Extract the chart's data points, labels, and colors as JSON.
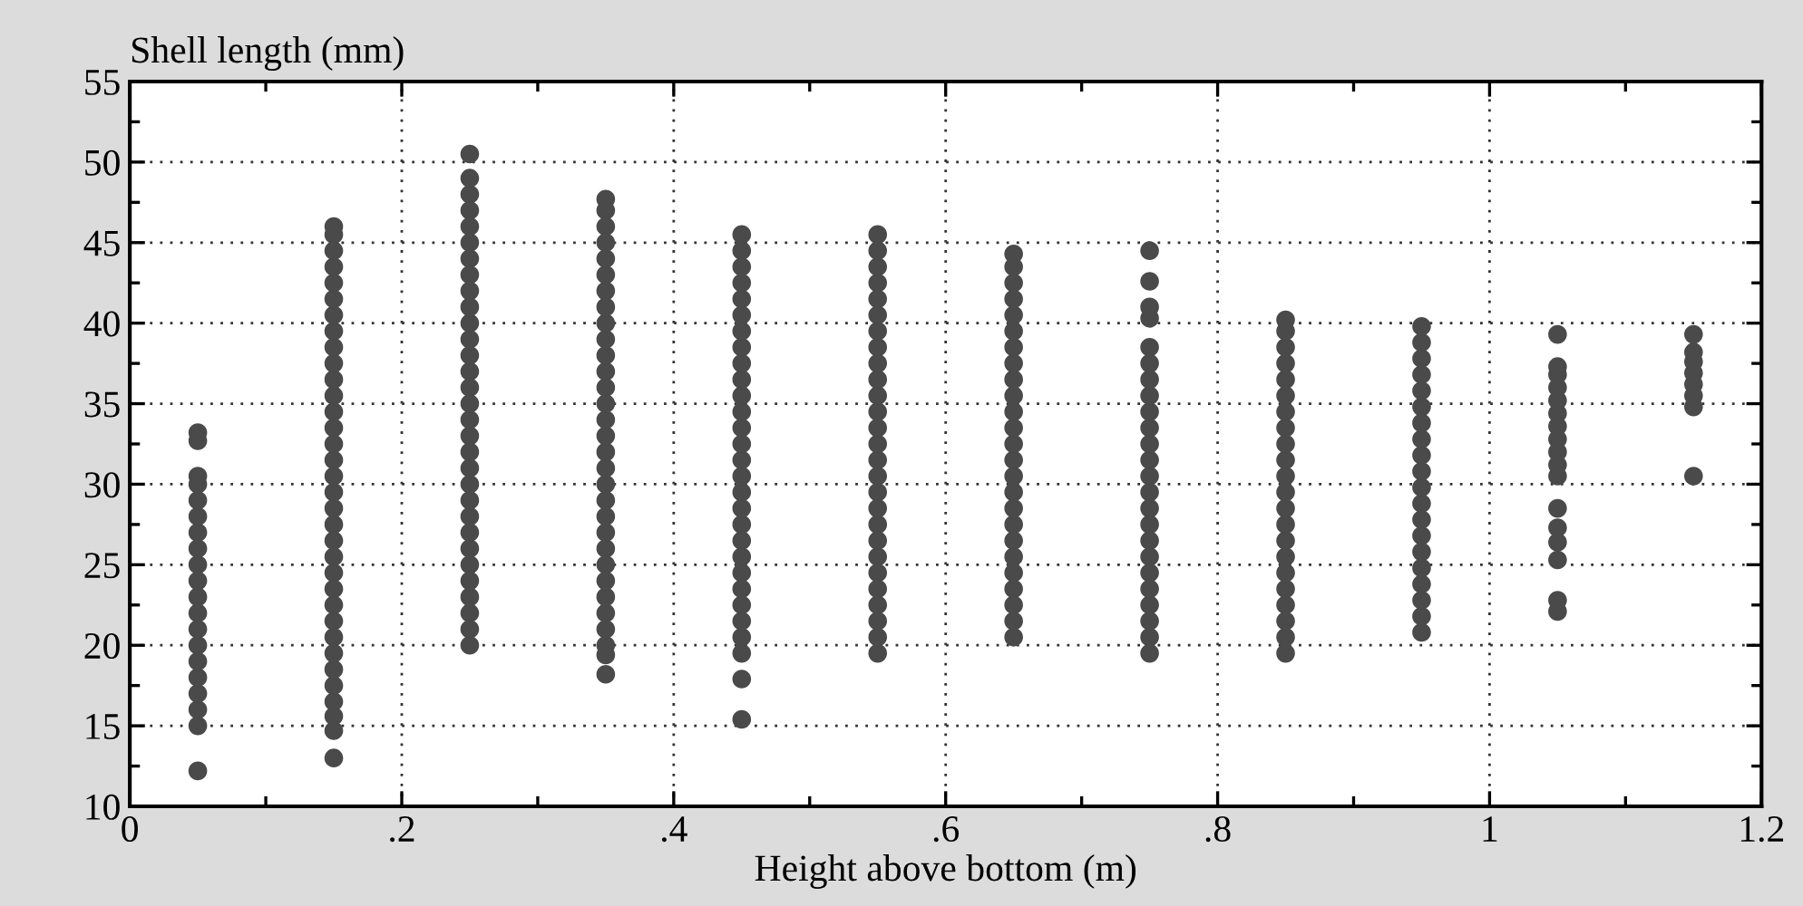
{
  "chart_data": {
    "type": "scatter",
    "xlabel": "Height above bottom (m)",
    "ylabel": "Shell length (mm)",
    "xlim": [
      0,
      1.2
    ],
    "xticks": [
      0,
      {
        "value": 0.2,
        "label": ".2"
      },
      {
        "value": 0.4,
        "label": ".4"
      },
      {
        "value": 0.6,
        "label": ".6"
      },
      {
        "value": 0.8,
        "label": ".8"
      },
      1,
      1.2
    ],
    "ylim": [
      10,
      55
    ],
    "yticks": [
      10,
      15,
      20,
      25,
      30,
      35,
      40,
      45,
      50,
      55
    ],
    "grid": true,
    "marker": "circle",
    "series": [
      {
        "color": "#4a4a4a",
        "x": [
          0.05,
          0.05,
          0.05,
          0.05,
          0.05,
          0.05,
          0.05,
          0.05,
          0.05,
          0.05,
          0.05,
          0.05,
          0.05,
          0.05,
          0.05,
          0.05,
          0.05,
          0.05,
          0.05,
          0.05
        ],
        "values": [
          12.2,
          15,
          16,
          17,
          18,
          19,
          20,
          21,
          22,
          23,
          24,
          25,
          26,
          27,
          28,
          29,
          30,
          30.5,
          32.7,
          33.2
        ]
      },
      {
        "color": "#4a4a4a",
        "x": [
          0.15,
          0.15,
          0.15,
          0.15,
          0.15,
          0.15,
          0.15,
          0.15,
          0.15,
          0.15,
          0.15,
          0.15,
          0.15,
          0.15,
          0.15,
          0.15,
          0.15,
          0.15,
          0.15,
          0.15,
          0.15,
          0.15,
          0.15,
          0.15,
          0.15,
          0.15,
          0.15,
          0.15,
          0.15,
          0.15,
          0.15,
          0.15,
          0.15,
          0.15
        ],
        "values": [
          13,
          14.7,
          15.6,
          16.5,
          17.5,
          18.5,
          19.5,
          20.5,
          21.5,
          22.5,
          23.5,
          24.5,
          25.5,
          26.5,
          27.5,
          28.5,
          29.5,
          30.5,
          31.5,
          32.5,
          33.5,
          34.5,
          35.5,
          36.5,
          37.5,
          38.5,
          39.5,
          40.5,
          41.5,
          42.5,
          43.5,
          44.5,
          45.5,
          46
        ]
      },
      {
        "color": "#4a4a4a",
        "x": [
          0.25,
          0.25,
          0.25,
          0.25,
          0.25,
          0.25,
          0.25,
          0.25,
          0.25,
          0.25,
          0.25,
          0.25,
          0.25,
          0.25,
          0.25,
          0.25,
          0.25,
          0.25,
          0.25,
          0.25,
          0.25,
          0.25,
          0.25,
          0.25,
          0.25,
          0.25,
          0.25,
          0.25,
          0.25,
          0.25,
          0.25
        ],
        "values": [
          20,
          21,
          22,
          23,
          24,
          25,
          26,
          27,
          28,
          29,
          30,
          31,
          32,
          33,
          34,
          35,
          36,
          37,
          38,
          39,
          40,
          41,
          42,
          43,
          44,
          45,
          46,
          47,
          48,
          49,
          50.5
        ]
      },
      {
        "color": "#4a4a4a",
        "x": [
          0.35,
          0.35,
          0.35,
          0.35,
          0.35,
          0.35,
          0.35,
          0.35,
          0.35,
          0.35,
          0.35,
          0.35,
          0.35,
          0.35,
          0.35,
          0.35,
          0.35,
          0.35,
          0.35,
          0.35,
          0.35,
          0.35,
          0.35,
          0.35,
          0.35,
          0.35,
          0.35,
          0.35,
          0.35,
          0.35,
          0.35
        ],
        "values": [
          18.2,
          19.4,
          20,
          21,
          22,
          23,
          24,
          25,
          26,
          27,
          28,
          29,
          30,
          31,
          32,
          33,
          34,
          35,
          36,
          37,
          38,
          39,
          40,
          41,
          42,
          43,
          44,
          45,
          46,
          47,
          47.7
        ]
      },
      {
        "color": "#4a4a4a",
        "x": [
          0.45,
          0.45,
          0.45,
          0.45,
          0.45,
          0.45,
          0.45,
          0.45,
          0.45,
          0.45,
          0.45,
          0.45,
          0.45,
          0.45,
          0.45,
          0.45,
          0.45,
          0.45,
          0.45,
          0.45,
          0.45,
          0.45,
          0.45,
          0.45,
          0.45,
          0.45,
          0.45,
          0.45,
          0.45
        ],
        "values": [
          15.4,
          17.9,
          19.5,
          20.5,
          21.5,
          22.5,
          23.5,
          24.5,
          25.5,
          26.5,
          27.5,
          28.5,
          29.5,
          30.5,
          31.5,
          32.5,
          33.5,
          34.5,
          35.5,
          36.5,
          37.5,
          38.5,
          39.5,
          40.5,
          41.5,
          42.5,
          43.5,
          44.5,
          45.5
        ]
      },
      {
        "color": "#4a4a4a",
        "x": [
          0.55,
          0.55,
          0.55,
          0.55,
          0.55,
          0.55,
          0.55,
          0.55,
          0.55,
          0.55,
          0.55,
          0.55,
          0.55,
          0.55,
          0.55,
          0.55,
          0.55,
          0.55,
          0.55,
          0.55,
          0.55,
          0.55,
          0.55,
          0.55,
          0.55,
          0.55,
          0.55
        ],
        "values": [
          19.5,
          20.5,
          21.5,
          22.5,
          23.5,
          24.5,
          25.5,
          26.5,
          27.5,
          28.5,
          29.5,
          30.5,
          31.5,
          32.5,
          33.5,
          34.5,
          35.5,
          36.5,
          37.5,
          38.5,
          39.5,
          40.5,
          41.5,
          42.5,
          43.5,
          44.5,
          45.5
        ]
      },
      {
        "color": "#4a4a4a",
        "x": [
          0.65,
          0.65,
          0.65,
          0.65,
          0.65,
          0.65,
          0.65,
          0.65,
          0.65,
          0.65,
          0.65,
          0.65,
          0.65,
          0.65,
          0.65,
          0.65,
          0.65,
          0.65,
          0.65,
          0.65,
          0.65,
          0.65,
          0.65,
          0.65,
          0.65
        ],
        "values": [
          20.5,
          21.5,
          22.5,
          23.5,
          24.5,
          25.5,
          26.5,
          27.5,
          28.5,
          29.5,
          30.5,
          31.5,
          32.5,
          33.5,
          34.5,
          35.5,
          36.5,
          37.5,
          38.5,
          39.5,
          40.5,
          41.5,
          42.5,
          43.5,
          44.3
        ]
      },
      {
        "color": "#4a4a4a",
        "x": [
          0.75,
          0.75,
          0.75,
          0.75,
          0.75,
          0.75,
          0.75,
          0.75,
          0.75,
          0.75,
          0.75,
          0.75,
          0.75,
          0.75,
          0.75,
          0.75,
          0.75,
          0.75,
          0.75,
          0.75,
          0.75,
          0.75,
          0.75,
          0.75
        ],
        "values": [
          19.5,
          20.5,
          21.5,
          22.5,
          23.5,
          24.5,
          25.5,
          26.5,
          27.5,
          28.5,
          29.5,
          30.5,
          31.5,
          32.5,
          33.5,
          34.5,
          35.5,
          36.5,
          37.5,
          38.5,
          40.3,
          41,
          42.6,
          44.5
        ]
      },
      {
        "color": "#4a4a4a",
        "x": [
          0.85,
          0.85,
          0.85,
          0.85,
          0.85,
          0.85,
          0.85,
          0.85,
          0.85,
          0.85,
          0.85,
          0.85,
          0.85,
          0.85,
          0.85,
          0.85,
          0.85,
          0.85,
          0.85,
          0.85,
          0.85,
          0.85
        ],
        "values": [
          19.5,
          20.5,
          21.5,
          22.5,
          23.5,
          24.5,
          25.5,
          26.5,
          27.5,
          28.5,
          29.5,
          30.5,
          31.5,
          32.5,
          33.5,
          34.5,
          35.5,
          36.5,
          37.5,
          38.5,
          39.5,
          40.2
        ]
      },
      {
        "color": "#4a4a4a",
        "x": [
          0.95,
          0.95,
          0.95,
          0.95,
          0.95,
          0.95,
          0.95,
          0.95,
          0.95,
          0.95,
          0.95,
          0.95,
          0.95,
          0.95,
          0.95,
          0.95,
          0.95,
          0.95,
          0.95,
          0.95
        ],
        "values": [
          20.8,
          21.8,
          22.8,
          23.8,
          24.8,
          25.8,
          26.8,
          27.8,
          28.8,
          29.8,
          30.8,
          31.8,
          32.8,
          33.8,
          34.8,
          35.8,
          36.8,
          37.8,
          38.8,
          39.8
        ]
      },
      {
        "color": "#4a4a4a",
        "x": [
          1.05,
          1.05,
          1.05,
          1.05,
          1.05,
          1.05,
          1.05,
          1.05,
          1.05,
          1.05,
          1.05,
          1.05,
          1.05,
          1.05,
          1.05,
          1.05,
          1.05
        ],
        "values": [
          22.1,
          22.8,
          25.3,
          26.4,
          27.3,
          28.5,
          30.5,
          31.2,
          32,
          32.8,
          33.6,
          34.4,
          35.2,
          36,
          36.8,
          37.3,
          39.3
        ]
      },
      {
        "color": "#4a4a4a",
        "x": [
          1.15,
          1.15,
          1.15,
          1.15,
          1.15,
          1.15,
          1.15,
          1.15
        ],
        "values": [
          30.5,
          34.8,
          35.5,
          36.2,
          36.9,
          37.6,
          38.2,
          39.3
        ]
      }
    ]
  }
}
